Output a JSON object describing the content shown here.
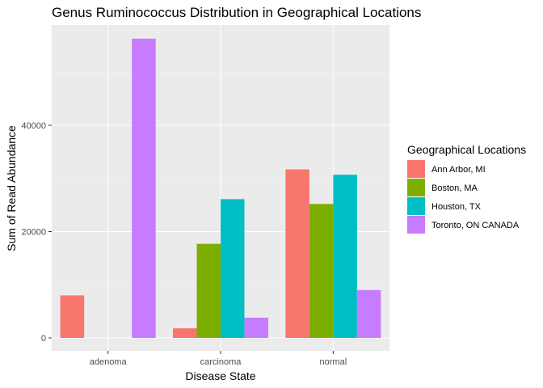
{
  "chart_data": {
    "type": "bar",
    "title": "Genus Ruminococcus Distribution in Geographical Locations",
    "xlabel": "Disease State",
    "ylabel": "Sum of Read Abundance",
    "categories": [
      "adenoma",
      "carcinoma",
      "normal"
    ],
    "ylim": [
      0,
      60000
    ],
    "yticks": [
      0,
      20000,
      40000
    ],
    "ytick_labels": [
      "0",
      "20000",
      "40000"
    ],
    "grid": true,
    "legend": {
      "title": "Geographical Locations",
      "position": "right"
    },
    "series": [
      {
        "name": "Ann Arbor, MI",
        "color": "#F8766D",
        "values": [
          8000,
          1800,
          31700
        ]
      },
      {
        "name": "Boston, MA",
        "color": "#7CAE00",
        "values": [
          null,
          17700,
          25200
        ]
      },
      {
        "name": "Houston, TX",
        "color": "#00BFC4",
        "values": [
          null,
          26100,
          30700
        ]
      },
      {
        "name": "Toronto, ON CANADA",
        "color": "#C77CFF",
        "values": [
          56300,
          3800,
          9000
        ]
      }
    ]
  }
}
